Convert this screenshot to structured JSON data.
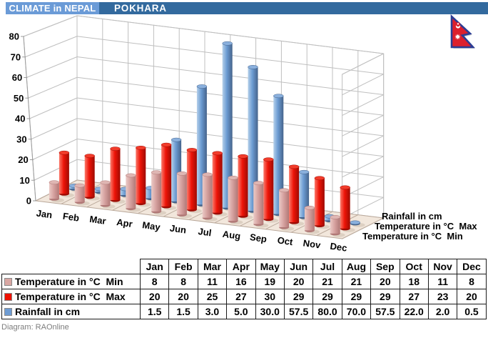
{
  "header": {
    "title_left": "CLIMATE in NEPAL",
    "title_right": "POKHARA",
    "left_bg": "#6B9BD7",
    "right_bg": "#336A9E"
  },
  "flag": {
    "name": "Flag of Nepal",
    "crimson": "#DC1F2D",
    "border_blue": "#2B3C94"
  },
  "footer": {
    "credit": "Diagram: RAOnline"
  },
  "chart_data": {
    "type": "bar",
    "subtype": "3d-cylinder",
    "categories": [
      "Jan",
      "Feb",
      "Mar",
      "Apr",
      "May",
      "Jun",
      "Jul",
      "Aug",
      "Sep",
      "Oct",
      "Nov",
      "Dec"
    ],
    "series": [
      {
        "name": "Temperature in °C  Min",
        "values": [
          8,
          8,
          11,
          16,
          19,
          20,
          21,
          21,
          20,
          18,
          11,
          8
        ],
        "color": "#D6A2A0",
        "color_light": "#EBCAC6",
        "color_dark": "#B07876",
        "color_top": "#DFB6B3"
      },
      {
        "name": "Temperature in °C  Max",
        "values": [
          20,
          20,
          25,
          27,
          30,
          29,
          29,
          29,
          29,
          27,
          23,
          20
        ],
        "color": "#EE1408",
        "color_light": "#FB7A6B",
        "color_dark": "#9E0B03",
        "color_top": "#F23C2B"
      },
      {
        "name": "Rainfall in cm",
        "values": [
          1.5,
          1.5,
          3.0,
          5.0,
          30.0,
          57.5,
          80.0,
          70.0,
          57.5,
          22.0,
          2.0,
          0.5
        ],
        "color": "#6B9BD2",
        "color_light": "#B5D0EA",
        "color_dark": "#45638B",
        "color_top": "#8AB0DD"
      }
    ],
    "ylim": [
      0,
      80
    ],
    "yticks": [
      0,
      10,
      20,
      30,
      40,
      50,
      60,
      70,
      80
    ],
    "grid": true,
    "legend_position": "right-of-plot (series axis labels, top to bottom): Rainfall in cm, Temperature in °C  Max, Temperature in °C  Min",
    "floor_color": "#F2E7DC",
    "wall_color": "#FFFFFF",
    "gridline_color": "#BFBFBF"
  },
  "table": {
    "columns": [
      "Jan",
      "Feb",
      "Mar",
      "Apr",
      "May",
      "Jun",
      "Jul",
      "Aug",
      "Sep",
      "Oct",
      "Nov",
      "Dec"
    ],
    "rows": [
      {
        "label": "Temperature in °C  Min",
        "key_color": "#D9A7A3",
        "values": [
          "8",
          "8",
          "11",
          "16",
          "19",
          "20",
          "21",
          "21",
          "20",
          "18",
          "11",
          "8"
        ]
      },
      {
        "label": "Temperature in °C  Max",
        "key_color": "#EE1100",
        "values": [
          "20",
          "20",
          "25",
          "27",
          "30",
          "29",
          "29",
          "29",
          "29",
          "27",
          "23",
          "20"
        ]
      },
      {
        "label": "Rainfall in cm",
        "key_color": "#6E9CD3",
        "values": [
          "1.5",
          "1.5",
          "3.0",
          "5.0",
          "30.0",
          "57.5",
          "80.0",
          "70.0",
          "57.5",
          "22.0",
          "2.0",
          "0.5"
        ]
      }
    ]
  }
}
